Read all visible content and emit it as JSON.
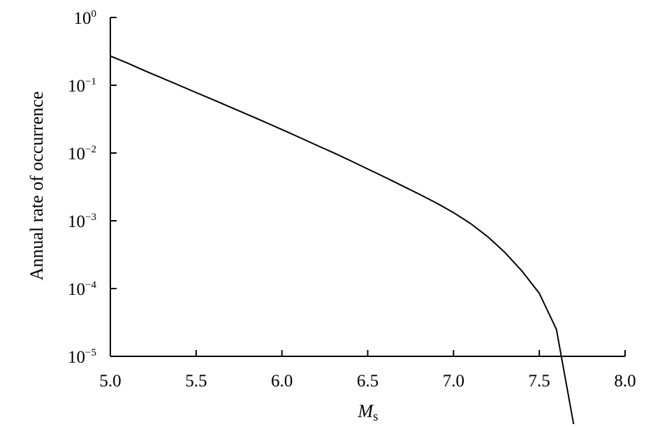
{
  "chart_data": {
    "type": "line",
    "xlabel": {
      "main": "M",
      "subscript": "s"
    },
    "ylabel": "Annual rate of occurrence",
    "xlim": [
      5.0,
      8.0
    ],
    "ylim": [
      1e-05,
      1
    ],
    "yscale": "log",
    "grid": false,
    "x_ticks": [
      {
        "value": 5.0,
        "label": "5.0"
      },
      {
        "value": 5.5,
        "label": "5.5"
      },
      {
        "value": 6.0,
        "label": "6.0"
      },
      {
        "value": 6.5,
        "label": "6.5"
      },
      {
        "value": 7.0,
        "label": "7.0"
      },
      {
        "value": 7.5,
        "label": "7.5"
      },
      {
        "value": 8.0,
        "label": "8.0"
      }
    ],
    "y_ticks": [
      {
        "value": 1,
        "base": "10",
        "exponent": "0"
      },
      {
        "value": 0.1,
        "base": "10",
        "exponent": "−1"
      },
      {
        "value": 0.01,
        "base": "10",
        "exponent": "−2"
      },
      {
        "value": 0.001,
        "base": "10",
        "exponent": "−3"
      },
      {
        "value": 0.0001,
        "base": "10",
        "exponent": "−4"
      },
      {
        "value": 1e-05,
        "base": "10",
        "exponent": "−5"
      }
    ],
    "series": [
      {
        "color": "#000000",
        "x": [
          5.0,
          5.1,
          5.2,
          5.3,
          5.4,
          5.5,
          5.6,
          5.7,
          5.8,
          5.9,
          6.0,
          6.1,
          6.2,
          6.3,
          6.4,
          6.5,
          6.6,
          6.7,
          6.8,
          6.9,
          7.0,
          7.1,
          7.2,
          7.3,
          7.4,
          7.5,
          7.6,
          7.7
        ],
        "y": [
          0.27,
          0.212,
          0.164,
          0.128,
          0.1,
          0.078,
          0.061,
          0.0475,
          0.037,
          0.0287,
          0.0222,
          0.0171,
          0.0131,
          0.0101,
          0.0077,
          0.0058,
          0.0044,
          0.0033,
          0.00247,
          0.00183,
          0.00132,
          0.00091,
          0.00058,
          0.00034,
          0.00018,
          8.5e-05,
          2.5e-05,
          1e-06
        ]
      }
    ]
  }
}
